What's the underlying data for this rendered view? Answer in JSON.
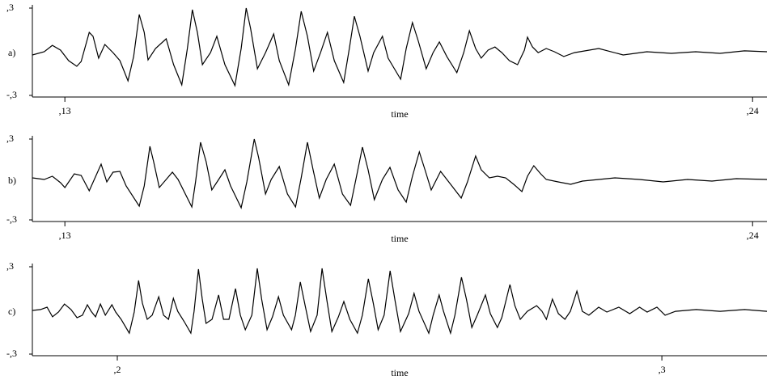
{
  "chart_data": [
    {
      "type": "line",
      "panel_label": "a)",
      "xlabel": "time",
      "xlim": [
        0.1248,
        0.2423
      ],
      "ylim": [
        -0.3,
        0.3
      ],
      "xticks": [
        {
          "value": 0.13,
          "label": ",13"
        },
        {
          "value": 0.24,
          "label": ",24"
        }
      ],
      "yticks": [
        {
          "value": 0.3,
          "label": ",3"
        },
        {
          "value": -0.3,
          "label": "-,3"
        }
      ],
      "x": [
        0.1248,
        0.1267,
        0.128,
        0.1293,
        0.1306,
        0.1319,
        0.1326,
        0.1339,
        0.1345,
        0.1354,
        0.1364,
        0.1377,
        0.1388,
        0.1401,
        0.141,
        0.1419,
        0.1427,
        0.1433,
        0.1445,
        0.1462,
        0.1474,
        0.1487,
        0.1496,
        0.1504,
        0.1512,
        0.152,
        0.1533,
        0.1543,
        0.1556,
        0.1572,
        0.1582,
        0.159,
        0.1597,
        0.1608,
        0.1621,
        0.1634,
        0.1643,
        0.1658,
        0.1669,
        0.1678,
        0.1688,
        0.1698,
        0.1709,
        0.172,
        0.1731,
        0.1746,
        0.1755,
        0.1763,
        0.1772,
        0.1785,
        0.1794,
        0.1808,
        0.1817,
        0.1837,
        0.1846,
        0.1856,
        0.1865,
        0.1878,
        0.1889,
        0.1899,
        0.1911,
        0.1927,
        0.1938,
        0.1947,
        0.1957,
        0.1966,
        0.1977,
        0.1988,
        0.1999,
        0.2011,
        0.2024,
        0.2035,
        0.204,
        0.2048,
        0.2057,
        0.207,
        0.2083,
        0.2098,
        0.2115,
        0.2154,
        0.2193,
        0.2231,
        0.227,
        0.2309,
        0.2348,
        0.2387,
        0.2423
      ],
      "series": [
        {
          "color": "#000000",
          "values": [
            -0.022,
            0,
            0.044,
            0.011,
            -0.061,
            -0.1,
            -0.067,
            0.133,
            0.106,
            -0.044,
            0.05,
            -0.006,
            -0.061,
            -0.2,
            -0.033,
            0.256,
            0.133,
            -0.056,
            0.022,
            0.089,
            -0.089,
            -0.228,
            0.022,
            0.289,
            0.133,
            -0.089,
            -0.006,
            0.106,
            -0.089,
            -0.233,
            0.022,
            0.3,
            0.161,
            -0.117,
            -0.006,
            0.122,
            -0.061,
            -0.228,
            0.022,
            0.278,
            0.106,
            -0.133,
            -0.006,
            0.133,
            -0.061,
            -0.211,
            0.022,
            0.244,
            0.106,
            -0.133,
            -0.006,
            0.106,
            -0.044,
            -0.189,
            0.022,
            0.2,
            0.078,
            -0.117,
            -0.006,
            0.067,
            -0.033,
            -0.144,
            -0.006,
            0.144,
            0.022,
            -0.044,
            0.011,
            0.033,
            -0.006,
            -0.061,
            -0.089,
            0.011,
            0.1,
            0.033,
            -0.006,
            0.022,
            0,
            -0.033,
            -0.006,
            0.022,
            -0.022,
            0,
            -0.011,
            0,
            -0.011,
            0.006,
            0
          ]
        }
      ]
    },
    {
      "type": "line",
      "panel_label": "b)",
      "xlabel": "time",
      "xlim": [
        0.1248,
        0.2423
      ],
      "ylim": [
        -0.3,
        0.3
      ],
      "xticks": [
        {
          "value": 0.13,
          "label": ",13"
        },
        {
          "value": 0.24,
          "label": ",24"
        }
      ],
      "yticks": [
        {
          "value": 0.3,
          "label": ",3"
        },
        {
          "value": -0.3,
          "label": "-,3"
        }
      ],
      "x": [
        0.1248,
        0.1267,
        0.128,
        0.1293,
        0.13,
        0.1315,
        0.1326,
        0.1339,
        0.1358,
        0.1367,
        0.1377,
        0.1388,
        0.1398,
        0.1419,
        0.1427,
        0.1436,
        0.1442,
        0.1451,
        0.1462,
        0.1472,
        0.1481,
        0.1503,
        0.1509,
        0.1517,
        0.1526,
        0.1535,
        0.1546,
        0.1556,
        0.1565,
        0.1582,
        0.1591,
        0.1603,
        0.161,
        0.1621,
        0.163,
        0.1643,
        0.1656,
        0.1669,
        0.1678,
        0.1688,
        0.1697,
        0.1707,
        0.1718,
        0.1731,
        0.1744,
        0.1757,
        0.1766,
        0.1776,
        0.1785,
        0.1795,
        0.1808,
        0.182,
        0.1833,
        0.1846,
        0.1856,
        0.1867,
        0.1876,
        0.1886,
        0.1901,
        0.1917,
        0.1934,
        0.1944,
        0.1957,
        0.1966,
        0.1979,
        0.1992,
        0.2005,
        0.2018,
        0.2031,
        0.204,
        0.205,
        0.2061,
        0.207,
        0.2089,
        0.2109,
        0.2128,
        0.2154,
        0.218,
        0.2219,
        0.2257,
        0.2296,
        0.2335,
        0.2374,
        0.2423
      ],
      "series": [
        {
          "color": "#000000",
          "values": [
            0.012,
            0,
            0.024,
            -0.024,
            -0.06,
            0.042,
            0.03,
            -0.084,
            0.114,
            -0.018,
            0.054,
            0.06,
            -0.048,
            -0.198,
            -0.048,
            0.246,
            0.132,
            -0.06,
            0,
            0.054,
            0,
            -0.204,
            -0.018,
            0.276,
            0.132,
            -0.078,
            0,
            0.072,
            -0.048,
            -0.21,
            -0.018,
            0.3,
            0.162,
            -0.108,
            0,
            0.096,
            -0.108,
            -0.204,
            0.012,
            0.276,
            0.072,
            -0.138,
            0,
            0.114,
            -0.108,
            -0.192,
            0.012,
            0.24,
            0.072,
            -0.15,
            0,
            0.09,
            -0.078,
            -0.168,
            0.024,
            0.204,
            0.072,
            -0.078,
            0.06,
            -0.036,
            -0.138,
            -0.018,
            0.174,
            0.072,
            0.012,
            0.024,
            0.012,
            -0.036,
            -0.09,
            0.024,
            0.102,
            0.042,
            0,
            -0.018,
            -0.036,
            -0.012,
            0,
            0.012,
            0,
            -0.018,
            0,
            -0.012,
            0.006,
            0
          ]
        }
      ]
    },
    {
      "type": "line",
      "panel_label": "c)",
      "xlabel": "time",
      "xlim": [
        0.1844,
        0.3193
      ],
      "ylim": [
        -0.3,
        0.3
      ],
      "xticks": [
        {
          "value": 0.2,
          "label": ",2"
        },
        {
          "value": 0.3,
          "label": ",3"
        }
      ],
      "yticks": [
        {
          "value": 0.3,
          "label": ",3"
        },
        {
          "value": -0.3,
          "label": "-,3"
        }
      ],
      "x": [
        0.1844,
        0.1859,
        0.1871,
        0.1881,
        0.1892,
        0.1903,
        0.1915,
        0.1926,
        0.1936,
        0.1945,
        0.1952,
        0.196,
        0.1969,
        0.1978,
        0.199,
        0.1997,
        0.2007,
        0.2022,
        0.2031,
        0.2039,
        0.2046,
        0.2055,
        0.2064,
        0.2076,
        0.2085,
        0.2094,
        0.2103,
        0.2111,
        0.2123,
        0.2135,
        0.2141,
        0.2149,
        0.2156,
        0.2163,
        0.2174,
        0.2186,
        0.2195,
        0.2205,
        0.2217,
        0.2226,
        0.2235,
        0.2247,
        0.2257,
        0.2265,
        0.2275,
        0.2285,
        0.2296,
        0.2305,
        0.232,
        0.2327,
        0.2336,
        0.2345,
        0.2355,
        0.2367,
        0.2376,
        0.2385,
        0.2394,
        0.2406,
        0.2416,
        0.2427,
        0.2441,
        0.245,
        0.2461,
        0.247,
        0.2479,
        0.249,
        0.2501,
        0.251,
        0.252,
        0.2535,
        0.2545,
        0.2554,
        0.2572,
        0.258,
        0.2591,
        0.2599,
        0.2612,
        0.262,
        0.2632,
        0.2641,
        0.2651,
        0.2661,
        0.2676,
        0.2685,
        0.2698,
        0.2706,
        0.2721,
        0.273,
        0.274,
        0.2753,
        0.277,
        0.278,
        0.2788,
        0.2799,
        0.281,
        0.2822,
        0.2832,
        0.2844,
        0.2854,
        0.2866,
        0.2884,
        0.2899,
        0.2921,
        0.2941,
        0.2959,
        0.2973,
        0.2991,
        0.3006,
        0.3025,
        0.3063,
        0.3107,
        0.3152,
        0.3193
      ],
      "series": [
        {
          "color": "#000000",
          "values": [
            0,
            0.006,
            0.022,
            -0.044,
            -0.011,
            0.044,
            0.006,
            -0.05,
            -0.033,
            0.039,
            -0.006,
            -0.044,
            0.044,
            -0.033,
            0.039,
            -0.011,
            -0.061,
            -0.156,
            -0.011,
            0.206,
            0.05,
            -0.061,
            -0.033,
            0.094,
            -0.033,
            -0.061,
            0.083,
            -0.006,
            -0.078,
            -0.156,
            -0.006,
            0.284,
            0.078,
            -0.089,
            -0.061,
            0.106,
            -0.061,
            -0.061,
            0.15,
            -0.033,
            -0.133,
            -0.033,
            0.289,
            0.078,
            -0.133,
            -0.044,
            0.094,
            -0.033,
            -0.133,
            -0.033,
            0.195,
            0.033,
            -0.145,
            -0.033,
            0.289,
            0.067,
            -0.145,
            -0.044,
            0.061,
            -0.061,
            -0.156,
            -0.033,
            0.217,
            0.05,
            -0.133,
            -0.033,
            0.272,
            0.067,
            -0.145,
            -0.022,
            0.117,
            -0.006,
            -0.156,
            -0.033,
            0.106,
            -0.006,
            -0.156,
            -0.033,
            0.228,
            0.078,
            -0.117,
            -0.033,
            0.106,
            -0.022,
            -0.117,
            -0.05,
            0.178,
            0.033,
            -0.061,
            -0.006,
            0.033,
            -0.006,
            -0.061,
            0.078,
            -0.022,
            -0.061,
            -0.006,
            0.133,
            -0.006,
            -0.033,
            0.022,
            -0.011,
            0.022,
            -0.022,
            0.022,
            -0.011,
            0.022,
            -0.033,
            -0.006,
            0.006,
            -0.006,
            0.006,
            -0.006
          ]
        }
      ]
    }
  ]
}
